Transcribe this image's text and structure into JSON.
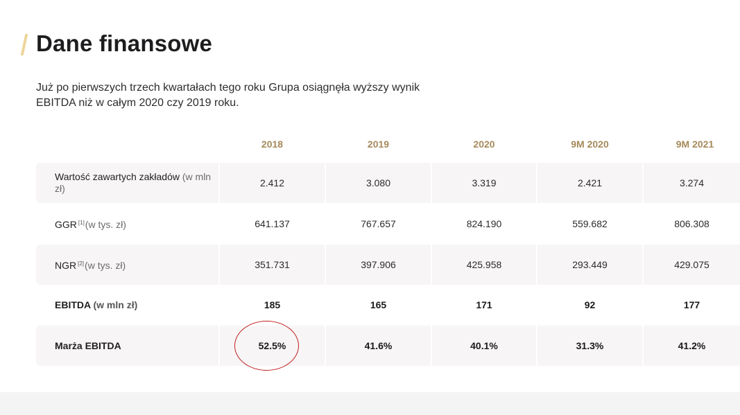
{
  "title": "Dane finansowe",
  "intro": "Już po pierwszych trzech kwartałach tego roku Grupa osiągnęła wyższy wynik EBITDA niż w całym 2020 czy 2019 roku.",
  "columns": [
    "2018",
    "2019",
    "2020",
    "9M 2020",
    "9M 2021"
  ],
  "rows": [
    {
      "label": "Wartość zawartych zakładów",
      "sup": "",
      "unit": "(w mln zł)",
      "values": [
        "2.412",
        "3.080",
        "3.319",
        "2.421",
        "3.274"
      ]
    },
    {
      "label": "GGR",
      "sup": "[1]",
      "unit": "(w tys. zł)",
      "values": [
        "641.137",
        "767.657",
        "824.190",
        "559.682",
        "806.308"
      ]
    },
    {
      "label": "NGR",
      "sup": "[2]",
      "unit": "(w tys. zł)",
      "values": [
        "351.731",
        "397.906",
        "425.958",
        "293.449",
        "429.075"
      ]
    },
    {
      "label": "EBITDA",
      "sup": "",
      "unit": "(w mln zł)",
      "values": [
        "185",
        "165",
        "171",
        "92",
        "177"
      ]
    },
    {
      "label": "Marża EBITDA",
      "sup": "",
      "unit": "",
      "values": [
        "52.5%",
        "41.6%",
        "40.1%",
        "31.3%",
        "41.2%"
      ]
    }
  ],
  "colors": {
    "accent_bar": "#edd59a",
    "column_header": "#a58a5b",
    "shaded_row": "#f7f5f6",
    "annotation": "#c21d1d"
  }
}
